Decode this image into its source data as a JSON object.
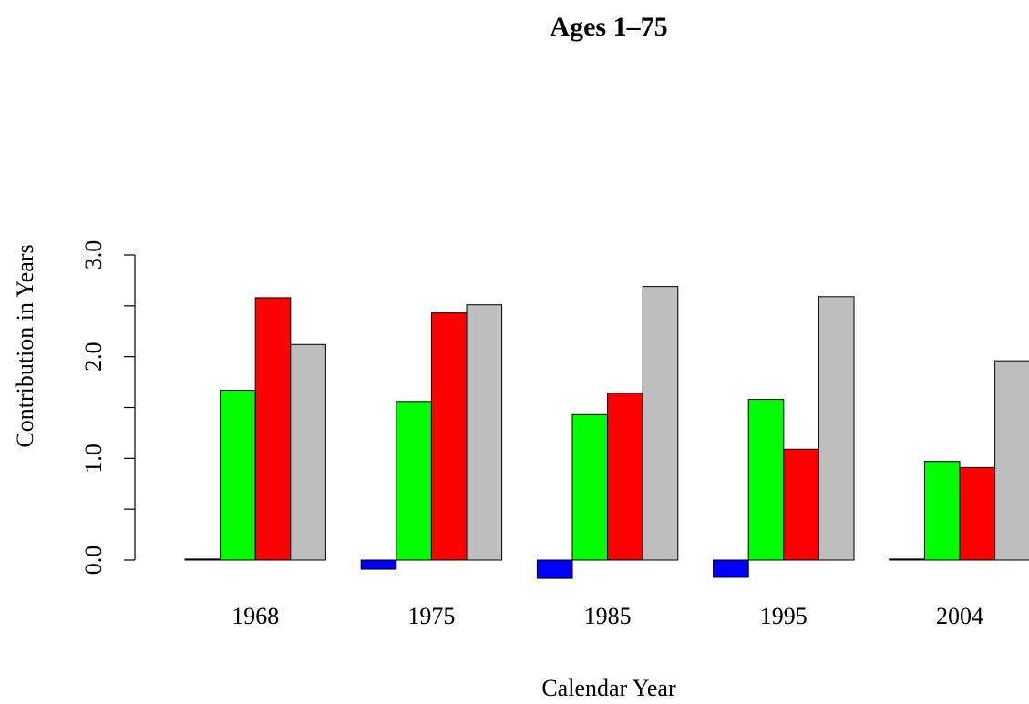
{
  "chart_data": {
    "type": "bar",
    "title": "Ages 1–75",
    "x_label": "Calendar Year",
    "y_label": "Contribution in Years",
    "categories": [
      "1968",
      "1975",
      "1985",
      "1995",
      "2004"
    ],
    "series": [
      {
        "color": "#0000ff",
        "values": [
          0.01,
          -0.09,
          -0.18,
          -0.17,
          0.01
        ]
      },
      {
        "color": "#00ff00",
        "values": [
          1.67,
          1.56,
          1.43,
          1.58,
          0.97
        ]
      },
      {
        "color": "#ff0000",
        "values": [
          2.58,
          2.43,
          1.64,
          1.09,
          0.91
        ]
      },
      {
        "color": "#bebebe",
        "values": [
          2.12,
          2.51,
          2.69,
          2.59,
          1.96
        ]
      }
    ],
    "ylim": [
      0,
      3
    ],
    "yticks": [
      {
        "value": 0,
        "label": "0.0"
      },
      {
        "value": 1,
        "label": "1.0"
      },
      {
        "value": 2,
        "label": "2.0"
      },
      {
        "value": 3,
        "label": "3.0"
      }
    ],
    "minor_yticks": [
      0.5,
      1.5,
      2.5
    ]
  }
}
